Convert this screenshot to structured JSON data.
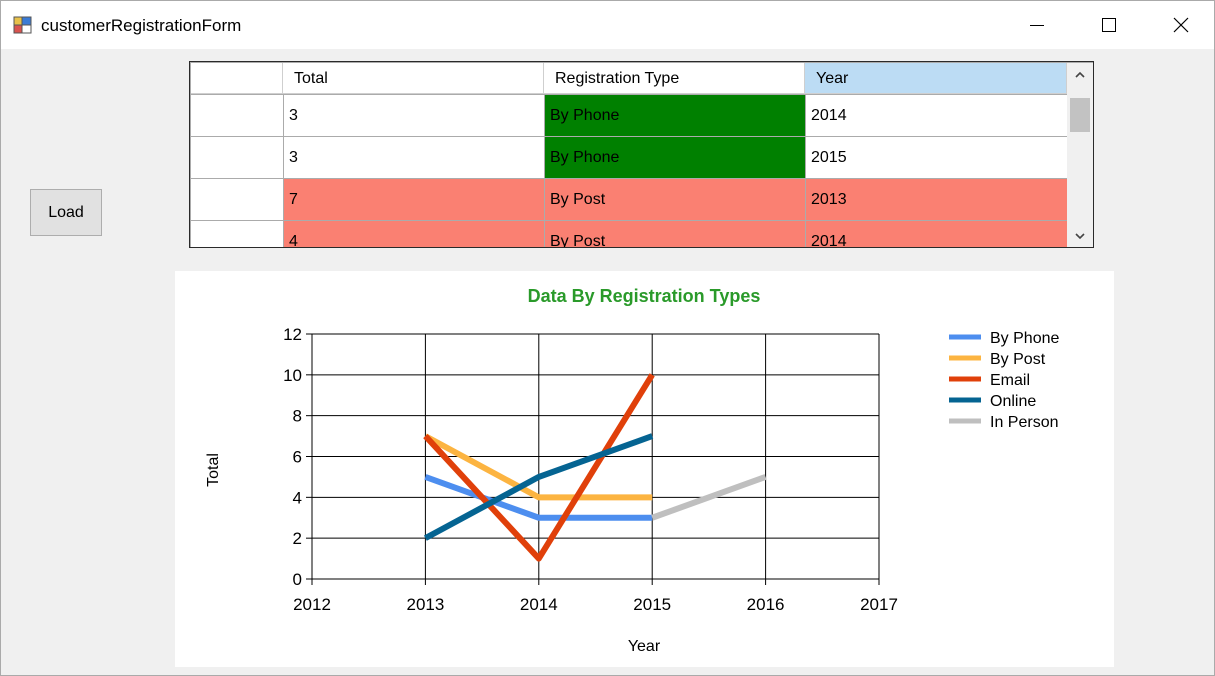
{
  "window": {
    "title": "customerRegistrationForm",
    "controls": {
      "minimize": "minimize-icon",
      "maximize": "maximize-icon",
      "close": "close-icon"
    }
  },
  "load_button": {
    "label": "Load"
  },
  "grid": {
    "columns": [
      "Total",
      "Registration Type",
      "Year"
    ],
    "selected_column": "Year",
    "rows": [
      {
        "total": "3",
        "type": "By Phone",
        "year": "2014",
        "row_color": "#ffffff",
        "type_color": "#008000"
      },
      {
        "total": "3",
        "type": "By Phone",
        "year": "2015",
        "row_color": "#ffffff",
        "type_color": "#008000"
      },
      {
        "total": "7",
        "type": "By Post",
        "year": "2013",
        "row_color": "#fa8072",
        "type_color": "#fa8072"
      },
      {
        "total": "4",
        "type": "By Post",
        "year": "2014",
        "row_color": "#fa8072",
        "type_color": "#fa8072"
      }
    ]
  },
  "chart_data": {
    "type": "line",
    "title": "Data By Registration Types",
    "title_color": "#2a9a2a",
    "xlabel": "Year",
    "ylabel": "Total",
    "xlim": [
      2012,
      2017
    ],
    "ylim": [
      0,
      12
    ],
    "x_ticks": [
      "2012",
      "2013",
      "2014",
      "2015",
      "2016",
      "2017"
    ],
    "y_ticks": [
      "0",
      "2",
      "4",
      "6",
      "8",
      "10",
      "12"
    ],
    "grid": true,
    "legend_position": "right",
    "series": [
      {
        "name": "By Phone",
        "color": "#4d8eef",
        "points": [
          [
            2013,
            5
          ],
          [
            2014,
            3
          ],
          [
            2015,
            3
          ]
        ]
      },
      {
        "name": "By Post",
        "color": "#fcb441",
        "points": [
          [
            2013,
            7
          ],
          [
            2014,
            4
          ],
          [
            2015,
            4
          ]
        ]
      },
      {
        "name": "Email",
        "color": "#e0400a",
        "points": [
          [
            2013,
            7
          ],
          [
            2014,
            1
          ],
          [
            2015,
            10
          ]
        ]
      },
      {
        "name": "Online",
        "color": "#056492",
        "points": [
          [
            2013,
            2
          ],
          [
            2014,
            5
          ],
          [
            2015,
            7
          ]
        ]
      },
      {
        "name": "In Person",
        "color": "#bfbfbf",
        "points": [
          [
            2015,
            3
          ],
          [
            2016,
            5
          ]
        ]
      }
    ]
  }
}
